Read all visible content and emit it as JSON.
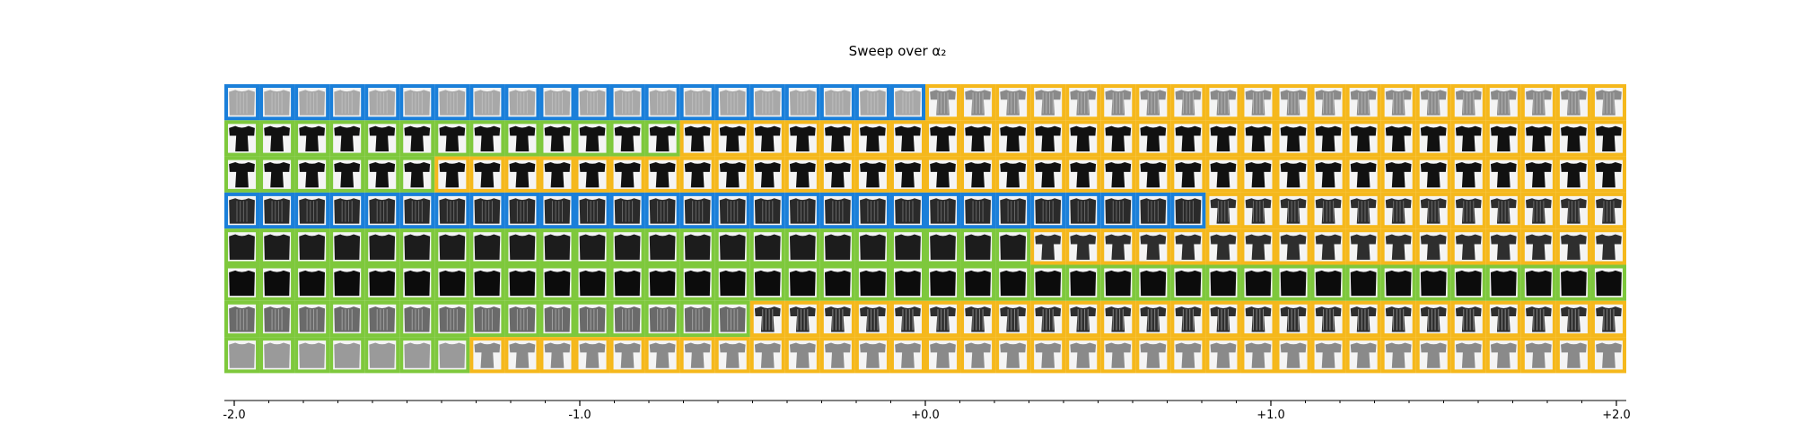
{
  "chart_data": {
    "type": "image-grid",
    "title": "Sweep over α₂",
    "x_axis": {
      "range": [
        -2.0,
        2.0
      ],
      "tick_labels": [
        "-2.0",
        "-1.0",
        "+0.0",
        "+1.0",
        "+2.0"
      ],
      "tick_values": [
        -2.0,
        -1.0,
        0.0,
        1.0,
        2.0
      ],
      "minor_step": 0.1
    },
    "grid": {
      "columns": 40,
      "rows": 8
    },
    "class_colors": {
      "blue": "#1a7fd9",
      "green": "#7ec83c",
      "orange": "#f5b81c"
    },
    "rows": [
      {
        "item": "long-sleeve-light",
        "borders": [
          {
            "color": "blue",
            "count": 20
          },
          {
            "color": "orange",
            "count": 20
          }
        ]
      },
      {
        "item": "tee-dark",
        "borders": [
          {
            "color": "green",
            "count": 13
          },
          {
            "color": "orange",
            "count": 27
          }
        ]
      },
      {
        "item": "tee-dark",
        "borders": [
          {
            "color": "green",
            "count": 6
          },
          {
            "color": "orange",
            "count": 34
          }
        ]
      },
      {
        "item": "patterned-dark",
        "borders": [
          {
            "color": "blue",
            "count": 28
          },
          {
            "color": "orange",
            "count": 12
          }
        ]
      },
      {
        "item": "long-sleeve-dark",
        "borders": [
          {
            "color": "green",
            "count": 23
          },
          {
            "color": "orange",
            "count": 17
          }
        ]
      },
      {
        "item": "pullover-black",
        "borders": [
          {
            "color": "green",
            "count": 40
          }
        ]
      },
      {
        "item": "patterned-gray",
        "borders": [
          {
            "color": "green",
            "count": 15
          },
          {
            "color": "orange",
            "count": 25
          }
        ]
      },
      {
        "item": "sweater-light",
        "borders": [
          {
            "color": "green",
            "count": 7
          },
          {
            "color": "orange",
            "count": 33
          }
        ]
      }
    ]
  }
}
